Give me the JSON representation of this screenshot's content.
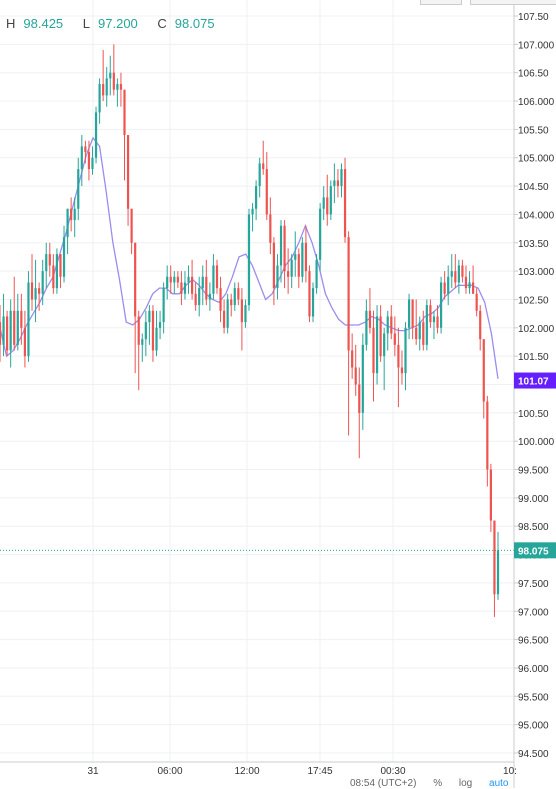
{
  "ohlc": {
    "h_label": "H",
    "h_value": "98.425",
    "l_label": "L",
    "l_value": "97.200",
    "c_label": "C",
    "c_value": "98.075"
  },
  "bottom_bar": {
    "time": "08:54 (UTC+2)",
    "percent": "%",
    "log": "log",
    "auto": "auto"
  },
  "colors": {
    "up": "#26a69a",
    "down": "#ef5350",
    "ma": "#9c8cf0",
    "current_price": "#26a69a",
    "marker": "#651fff",
    "grid": "#eef0f3"
  },
  "chart_data": {
    "type": "candlestick",
    "y_axis": {
      "min": 94.5,
      "max": 107.5,
      "step": 0.5,
      "tick_labels": [
        "107.50",
        "107.000",
        "106.50",
        "106.000",
        "105.50",
        "105.000",
        "104.50",
        "104.000",
        "103.50",
        "103.000",
        "102.50",
        "102.000",
        "101.50",
        "101.000",
        "100.50",
        "100.000",
        "99.500",
        "99.000",
        "98.500",
        "98.000",
        "97.500",
        "97.000",
        "96.500",
        "96.000",
        "95.500",
        "95.000",
        "94.500"
      ],
      "tick_values": [
        107.5,
        107.0,
        106.5,
        106.0,
        105.5,
        105.0,
        104.5,
        104.0,
        103.5,
        103.0,
        102.5,
        102.0,
        101.5,
        101.0,
        100.5,
        100.0,
        99.5,
        99.0,
        98.5,
        98.0,
        97.5,
        97.0,
        96.5,
        96.0,
        95.5,
        95.0,
        94.5
      ]
    },
    "x_axis": {
      "tick_labels": [
        "31",
        "06:00",
        "12:00",
        "17:45",
        "00:30",
        "10:"
      ]
    },
    "current_price": {
      "value": 98.075,
      "label": "98.075"
    },
    "ma_marker": {
      "value": 101.07,
      "label": "101.07"
    },
    "candles": [
      [
        102.1,
        102.4,
        101.4,
        101.7
      ],
      [
        101.7,
        102.6,
        101.5,
        102.2
      ],
      [
        102.2,
        102.3,
        101.5,
        101.6
      ],
      [
        101.6,
        102.5,
        101.3,
        102.3
      ],
      [
        102.3,
        102.9,
        101.6,
        101.7
      ],
      [
        101.7,
        102.6,
        101.6,
        102.3
      ],
      [
        102.3,
        102.6,
        101.7,
        102.0
      ],
      [
        102.0,
        102.3,
        101.3,
        101.5
      ],
      [
        101.5,
        103.0,
        101.4,
        102.8
      ],
      [
        102.8,
        103.3,
        102.3,
        102.5
      ],
      [
        102.5,
        103.2,
        102.1,
        102.7
      ],
      [
        102.7,
        102.8,
        102.3,
        102.6
      ],
      [
        102.6,
        103.2,
        102.4,
        103.0
      ],
      [
        103.0,
        103.5,
        102.7,
        103.3
      ],
      [
        103.3,
        103.5,
        102.9,
        103.1
      ],
      [
        103.1,
        103.3,
        102.6,
        102.7
      ],
      [
        102.7,
        103.4,
        102.6,
        103.3
      ],
      [
        103.3,
        103.3,
        102.7,
        102.9
      ],
      [
        102.9,
        103.8,
        102.8,
        103.6
      ],
      [
        103.6,
        104.1,
        103.3,
        104.1
      ],
      [
        104.1,
        104.3,
        103.7,
        103.9
      ],
      [
        103.9,
        104.3,
        103.6,
        104.1
      ],
      [
        104.1,
        105.0,
        103.9,
        104.8
      ],
      [
        104.8,
        105.4,
        104.5,
        105.2
      ],
      [
        105.2,
        105.3,
        104.9,
        105.1
      ],
      [
        105.1,
        105.3,
        104.6,
        104.8
      ],
      [
        104.8,
        105.2,
        104.7,
        105.0
      ],
      [
        105.0,
        105.9,
        104.9,
        105.8
      ],
      [
        105.8,
        106.4,
        105.6,
        106.3
      ],
      [
        106.3,
        106.9,
        106.0,
        106.1
      ],
      [
        106.1,
        106.6,
        105.9,
        106.4
      ],
      [
        106.4,
        106.8,
        106.1,
        106.5
      ],
      [
        106.5,
        107.0,
        106.1,
        106.2
      ],
      [
        106.2,
        106.4,
        105.9,
        106.3
      ],
      [
        106.3,
        106.5,
        105.9,
        106.2
      ],
      [
        106.2,
        106.2,
        104.6,
        105.4
      ],
      [
        105.4,
        105.4,
        103.8,
        104.1
      ],
      [
        104.1,
        104.1,
        103.3,
        103.5
      ],
      [
        103.5,
        103.5,
        101.2,
        102.2
      ],
      [
        102.2,
        102.3,
        100.9,
        101.7
      ],
      [
        101.7,
        101.9,
        101.4,
        101.8
      ],
      [
        101.8,
        102.3,
        101.5,
        102.1
      ],
      [
        102.1,
        102.4,
        101.7,
        102.3
      ],
      [
        102.3,
        102.4,
        101.4,
        101.6
      ],
      [
        101.6,
        102.3,
        101.5,
        102.0
      ],
      [
        102.0,
        102.3,
        101.8,
        102.1
      ],
      [
        102.1,
        102.8,
        101.9,
        102.7
      ],
      [
        102.7,
        103.1,
        102.5,
        102.9
      ],
      [
        102.9,
        103.1,
        102.6,
        102.8
      ],
      [
        102.8,
        103.0,
        102.6,
        102.9
      ],
      [
        102.9,
        103.0,
        102.7,
        102.8
      ],
      [
        102.8,
        103.0,
        102.4,
        102.6
      ],
      [
        102.6,
        103.0,
        102.5,
        102.8
      ],
      [
        102.8,
        103.1,
        102.6,
        102.9
      ],
      [
        102.9,
        103.2,
        102.5,
        102.6
      ],
      [
        102.6,
        102.8,
        102.3,
        102.4
      ],
      [
        102.4,
        102.9,
        102.2,
        102.7
      ],
      [
        102.7,
        103.1,
        102.4,
        102.9
      ],
      [
        102.9,
        103.2,
        102.4,
        102.5
      ],
      [
        102.5,
        102.8,
        102.3,
        102.6
      ],
      [
        102.6,
        103.3,
        102.5,
        103.1
      ],
      [
        103.1,
        103.2,
        102.6,
        102.7
      ],
      [
        102.7,
        102.9,
        102.1,
        102.3
      ],
      [
        102.3,
        102.5,
        101.9,
        102.0
      ],
      [
        102.0,
        102.6,
        101.9,
        102.5
      ],
      [
        102.5,
        102.6,
        102.2,
        102.4
      ],
      [
        102.4,
        102.8,
        102.3,
        102.7
      ],
      [
        102.7,
        102.8,
        102.4,
        102.5
      ],
      [
        102.5,
        102.7,
        101.6,
        102.1
      ],
      [
        102.1,
        102.5,
        102.0,
        102.4
      ],
      [
        102.4,
        104.1,
        102.3,
        104.0
      ],
      [
        104.0,
        104.2,
        103.7,
        104.1
      ],
      [
        104.1,
        104.6,
        103.9,
        104.5
      ],
      [
        104.5,
        105.0,
        104.3,
        104.9
      ],
      [
        104.9,
        105.3,
        104.7,
        104.8
      ],
      [
        104.8,
        105.1,
        103.9,
        104.0
      ],
      [
        104.0,
        104.3,
        103.3,
        103.5
      ],
      [
        103.5,
        103.6,
        102.4,
        102.7
      ],
      [
        102.7,
        103.3,
        102.5,
        103.1
      ],
      [
        103.1,
        103.9,
        102.8,
        103.8
      ],
      [
        103.8,
        103.9,
        102.7,
        103.0
      ],
      [
        103.0,
        103.4,
        102.6,
        102.9
      ],
      [
        102.9,
        103.3,
        102.7,
        103.2
      ],
      [
        103.2,
        103.7,
        102.9,
        103.3
      ],
      [
        103.3,
        103.4,
        102.7,
        102.9
      ],
      [
        102.9,
        103.6,
        102.8,
        103.5
      ],
      [
        103.5,
        103.8,
        102.8,
        103.0
      ],
      [
        103.0,
        103.1,
        102.1,
        102.2
      ],
      [
        102.2,
        102.8,
        102.1,
        102.7
      ],
      [
        102.7,
        103.3,
        102.6,
        103.2
      ],
      [
        103.2,
        104.2,
        103.0,
        104.1
      ],
      [
        104.1,
        104.5,
        103.9,
        104.3
      ],
      [
        104.3,
        104.7,
        103.8,
        104.0
      ],
      [
        104.0,
        104.6,
        103.9,
        104.5
      ],
      [
        104.5,
        104.9,
        104.2,
        104.6
      ],
      [
        104.6,
        104.8,
        104.3,
        104.5
      ],
      [
        104.5,
        104.9,
        104.3,
        104.8
      ],
      [
        104.8,
        105.0,
        103.5,
        103.6
      ],
      [
        103.6,
        103.7,
        100.1,
        101.6
      ],
      [
        101.6,
        101.9,
        101.1,
        101.3
      ],
      [
        101.3,
        101.7,
        100.8,
        101.0
      ],
      [
        101.0,
        101.3,
        99.7,
        100.5
      ],
      [
        100.5,
        101.9,
        100.2,
        101.7
      ],
      [
        101.7,
        102.5,
        101.6,
        102.3
      ],
      [
        102.3,
        102.7,
        101.9,
        102.0
      ],
      [
        102.0,
        102.3,
        100.7,
        101.2
      ],
      [
        101.2,
        102.4,
        101.0,
        102.2
      ],
      [
        102.2,
        102.4,
        101.4,
        101.5
      ],
      [
        101.5,
        102.0,
        100.9,
        101.9
      ],
      [
        101.9,
        102.3,
        101.6,
        102.2
      ],
      [
        102.2,
        102.4,
        101.8,
        101.9
      ],
      [
        101.9,
        102.2,
        101.5,
        101.7
      ],
      [
        101.7,
        102.0,
        100.6,
        101.3
      ],
      [
        101.3,
        101.6,
        101.0,
        101.2
      ],
      [
        101.2,
        102.1,
        100.9,
        102.0
      ],
      [
        102.0,
        102.6,
        101.8,
        102.5
      ],
      [
        102.5,
        102.5,
        101.8,
        102.0
      ],
      [
        102.0,
        102.5,
        101.7,
        101.8
      ],
      [
        101.8,
        102.2,
        101.6,
        102.1
      ],
      [
        102.1,
        102.3,
        101.6,
        101.7
      ],
      [
        101.7,
        102.5,
        101.6,
        102.4
      ],
      [
        102.4,
        102.5,
        102.0,
        102.1
      ],
      [
        102.1,
        102.3,
        101.8,
        102.2
      ],
      [
        102.2,
        102.4,
        101.9,
        102.0
      ],
      [
        102.0,
        102.9,
        101.9,
        102.8
      ],
      [
        102.8,
        103.0,
        102.5,
        102.6
      ],
      [
        102.6,
        103.1,
        102.4,
        102.9
      ],
      [
        102.9,
        103.3,
        102.7,
        103.0
      ],
      [
        103.0,
        103.3,
        102.7,
        102.8
      ],
      [
        102.8,
        103.2,
        102.6,
        103.1
      ],
      [
        103.1,
        103.2,
        102.8,
        102.9
      ],
      [
        102.9,
        103.1,
        102.6,
        102.7
      ],
      [
        102.7,
        103.0,
        102.6,
        102.8
      ],
      [
        102.8,
        103.1,
        102.6,
        102.6
      ],
      [
        102.6,
        102.7,
        102.2,
        102.3
      ],
      [
        102.3,
        102.4,
        101.6,
        101.8
      ],
      [
        101.8,
        101.8,
        100.4,
        100.7
      ],
      [
        100.7,
        100.8,
        99.2,
        99.5
      ],
      [
        99.5,
        99.6,
        98.4,
        98.6
      ],
      [
        98.6,
        98.6,
        96.9,
        97.3
      ],
      [
        97.3,
        98.4,
        97.2,
        98.075
      ]
    ],
    "ma": [
      102.0,
      101.5,
      101.6,
      101.8,
      102.05,
      102.25,
      102.45,
      102.7,
      102.9,
      103.3,
      103.7,
      104.15,
      104.6,
      105.05,
      105.35,
      105.2,
      104.4,
      103.5,
      102.85,
      102.1,
      102.05,
      102.15,
      102.35,
      102.6,
      102.7,
      102.7,
      102.6,
      102.6,
      102.75,
      102.85,
      102.75,
      102.6,
      102.5,
      102.45,
      102.6,
      102.9,
      103.25,
      103.3,
      103.1,
      102.8,
      102.5,
      102.6,
      102.85,
      103.1,
      103.25,
      103.5,
      103.8,
      103.5,
      103.1,
      102.6,
      102.35,
      102.15,
      102.05,
      102.05,
      102.05,
      102.1,
      102.2,
      102.15,
      102.05,
      102.0,
      101.95,
      101.95,
      102.0,
      102.05,
      102.2,
      102.25,
      102.35,
      102.55,
      102.65,
      102.75,
      102.75,
      102.75,
      102.7,
      102.45,
      101.9,
      101.1
    ]
  }
}
